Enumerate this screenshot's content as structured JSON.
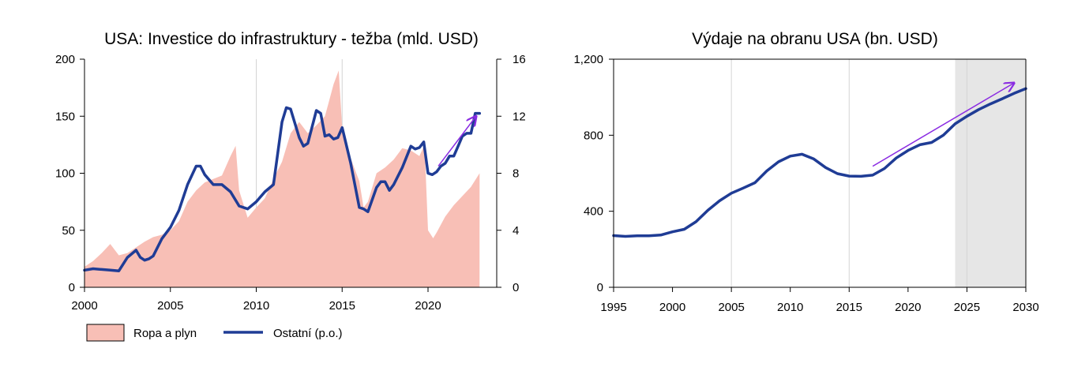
{
  "colors": {
    "area_fill": "#f8bfb6",
    "line": "#1f3c95",
    "arrow": "#8a2be2",
    "forecast_shade": "#e6e6e6",
    "gridline": "#d4d4d4",
    "axis": "#000000"
  },
  "chart_data": [
    {
      "id": "left",
      "type": "area+line",
      "title": "USA: Investice do infrastruktury - težba (mld. USD)",
      "xlabel": "",
      "ylabel": "",
      "xlim": [
        2000,
        2024
      ],
      "ylim": [
        0,
        200
      ],
      "y2lim": [
        0,
        16
      ],
      "x_ticks": [
        "2000",
        "2005",
        "2010",
        "2015",
        "2020"
      ],
      "y_ticks": [
        "200",
        "150",
        "100",
        "50",
        "0"
      ],
      "y2_ticks": [
        "16",
        "12",
        "8",
        "4",
        "0"
      ],
      "grid": "vertical at 2010 and 2015",
      "legend_position": "bottom-left",
      "series": [
        {
          "name": "Ropa a plyn",
          "kind": "area",
          "axis": "left",
          "x": [
            2000,
            2000.5,
            2001,
            2001.5,
            2002,
            2002.5,
            2003,
            2003.5,
            2004,
            2004.5,
            2005,
            2005.5,
            2006,
            2006.5,
            2007,
            2007.5,
            2008,
            2008.5,
            2008.8,
            2009,
            2009.5,
            2010,
            2010.5,
            2011,
            2011.5,
            2012,
            2012.5,
            2013,
            2013.5,
            2014,
            2014.5,
            2014.8,
            2015,
            2015.5,
            2016,
            2016.25,
            2016.5,
            2017,
            2017.5,
            2018,
            2018.5,
            2019,
            2019.5,
            2019.8,
            2020,
            2020.3,
            2020.5,
            2021,
            2021.5,
            2022,
            2022.5,
            2023
          ],
          "values": [
            18,
            23,
            30,
            38,
            28,
            30,
            35,
            40,
            44,
            46,
            50,
            58,
            75,
            85,
            92,
            95,
            98,
            115,
            124,
            85,
            61,
            70,
            78,
            95,
            110,
            135,
            145,
            135,
            142,
            150,
            178,
            190,
            140,
            113,
            93,
            70,
            75,
            100,
            105,
            112,
            122,
            120,
            115,
            125,
            50,
            43,
            48,
            62,
            72,
            80,
            88,
            100
          ]
        },
        {
          "name": "Ostatní (p.o.)",
          "kind": "line",
          "axis": "right",
          "x": [
            2000,
            2000.5,
            2001,
            2001.5,
            2002,
            2002.5,
            2003,
            2003.25,
            2003.5,
            2003.75,
            2004,
            2004.5,
            2005,
            2005.5,
            2006,
            2006.5,
            2006.75,
            2007,
            2007.5,
            2008,
            2008.5,
            2009,
            2009.5,
            2010,
            2010.5,
            2011,
            2011.5,
            2011.75,
            2012,
            2012.5,
            2012.75,
            2013,
            2013.5,
            2013.75,
            2014,
            2014.25,
            2014.5,
            2014.75,
            2015,
            2015.5,
            2016,
            2016.25,
            2016.5,
            2017,
            2017.25,
            2017.5,
            2017.75,
            2018,
            2018.5,
            2019,
            2019.25,
            2019.5,
            2019.75,
            2020,
            2020.25,
            2020.5,
            2020.75,
            2021,
            2021.25,
            2021.5,
            2021.75,
            2022,
            2022.25,
            2022.5,
            2022.75,
            2023
          ],
          "values": [
            1.2,
            1.3,
            1.25,
            1.2,
            1.15,
            2.1,
            2.6,
            2.1,
            1.9,
            2.0,
            2.2,
            3.4,
            4.2,
            5.4,
            7.2,
            8.5,
            8.5,
            7.9,
            7.2,
            7.2,
            6.7,
            5.7,
            5.5,
            6.0,
            6.7,
            7.2,
            11.6,
            12.6,
            12.5,
            10.5,
            9.9,
            10.1,
            12.4,
            12.2,
            10.6,
            10.7,
            10.4,
            10.5,
            11.2,
            8.7,
            5.6,
            5.5,
            5.3,
            7.0,
            7.4,
            7.4,
            6.8,
            7.2,
            8.4,
            9.9,
            9.7,
            9.8,
            10.2,
            8.0,
            7.9,
            8.1,
            8.5,
            8.7,
            9.2,
            9.2,
            9.9,
            10.6,
            10.8,
            10.8,
            12.2,
            12.2
          ]
        }
      ],
      "annotation": {
        "kind": "trend-arrow",
        "from": [
          2020.6,
          8.5
        ],
        "to": [
          2022.8,
          12.0
        ]
      }
    },
    {
      "id": "right",
      "type": "line",
      "title": "Výdaje na obranu USA (bn. USD)",
      "xlabel": "",
      "ylabel": "",
      "xlim": [
        1995,
        2030
      ],
      "ylim": [
        0,
        1200
      ],
      "x_ticks": [
        "1995",
        "2000",
        "2005",
        "2010",
        "2015",
        "2020",
        "2025",
        "2030"
      ],
      "y_ticks": [
        "1,200",
        "800",
        "400",
        "0"
      ],
      "grid": "vertical at 2005, 2015, 2025",
      "forecast_from": 2024,
      "series": [
        {
          "name": "",
          "kind": "line",
          "x": [
            1995,
            1996,
            1997,
            1998,
            1999,
            2000,
            2001,
            2002,
            2003,
            2004,
            2005,
            2006,
            2007,
            2008,
            2009,
            2010,
            2011,
            2012,
            2013,
            2014,
            2015,
            2016,
            2017,
            2018,
            2019,
            2020,
            2021,
            2022,
            2023,
            2024,
            2025,
            2026,
            2027,
            2028,
            2029,
            2030
          ],
          "values": [
            272,
            268,
            271,
            271,
            275,
            292,
            305,
            345,
            405,
            455,
            495,
            522,
            550,
            612,
            660,
            690,
            700,
            675,
            630,
            598,
            585,
            584,
            590,
            625,
            680,
            720,
            750,
            762,
            800,
            860,
            900,
            935,
            965,
            992,
            1020,
            1045
          ]
        }
      ],
      "annotation": {
        "kind": "trend-arrow",
        "from": [
          2017,
          637
        ],
        "to": [
          2029,
          1075
        ]
      }
    }
  ],
  "legend": {
    "area_label": "Ropa a plyn",
    "line_label": "Ostatní (p.o.)"
  }
}
